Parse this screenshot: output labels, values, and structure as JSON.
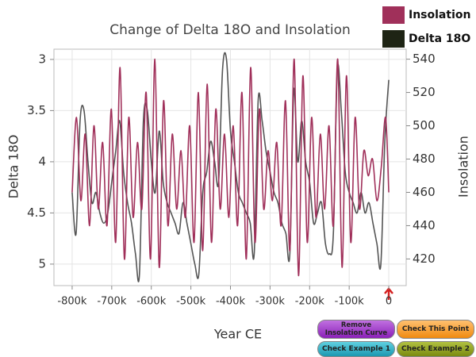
{
  "chart_data": {
    "type": "line",
    "title": "Change of Delta 18O and Insolation",
    "x_label": "Year CE",
    "y_label": "Delta 18O",
    "y2_label": "Insolation",
    "xlim": [
      -846000,
      44000
    ],
    "xticks": [
      {
        "value": -800000,
        "label": "-800k"
      },
      {
        "value": -700000,
        "label": "-700k"
      },
      {
        "value": -600000,
        "label": "-600k"
      },
      {
        "value": -500000,
        "label": "-500k"
      },
      {
        "value": -400000,
        "label": "-400k"
      },
      {
        "value": -300000,
        "label": "-300k"
      },
      {
        "value": -200000,
        "label": "-200k"
      },
      {
        "value": -100000,
        "label": "-100k"
      },
      {
        "value": 0,
        "label": "0"
      }
    ],
    "ylim": [
      2.9,
      5.21
    ],
    "y_inverted": true,
    "yticks": [
      3,
      3.5,
      4,
      4.5,
      5
    ],
    "y2lim": [
      404,
      546
    ],
    "y2ticks": [
      420,
      440,
      460,
      480,
      500,
      520,
      540
    ],
    "grid": true,
    "series": [
      {
        "name": "Insolation",
        "color": "#a0305a",
        "axis": "y2",
        "x": [
          -800000,
          -789000,
          -778000,
          -767000,
          -756000,
          -745000,
          -734000,
          -723000,
          -712000,
          -701000,
          -690000,
          -679000,
          -668000,
          -657000,
          -646000,
          -635000,
          -624000,
          -613000,
          -602000,
          -591000,
          -580000,
          -569000,
          -558000,
          -547000,
          -536000,
          -525000,
          -514000,
          -503000,
          -492000,
          -481000,
          -470000,
          -459000,
          -448000,
          -437000,
          -426000,
          -415000,
          -404000,
          -393000,
          -382000,
          -371000,
          -360000,
          -349000,
          -338000,
          -327000,
          -316000,
          -305000,
          -294000,
          -283000,
          -272000,
          -261000,
          -250000,
          -239000,
          -228000,
          -217000,
          -206000,
          -195000,
          -184000,
          -173000,
          -162000,
          -151000,
          -140000,
          -129000,
          -118000,
          -107000,
          -96000,
          -85000,
          -74000,
          -63000,
          -52000,
          -41000,
          -30000,
          -19000,
          -8000,
          0
        ],
        "values": [
          460,
          505,
          455,
          495,
          440,
          500,
          450,
          490,
          440,
          510,
          430,
          535,
          420,
          505,
          445,
          490,
          450,
          520,
          420,
          540,
          415,
          515,
          440,
          495,
          450,
          485,
          445,
          500,
          430,
          520,
          425,
          525,
          430,
          510,
          450,
          495,
          445,
          500,
          440,
          520,
          420,
          535,
          430,
          510,
          450,
          485,
          455,
          490,
          440,
          515,
          425,
          540,
          410,
          530,
          430,
          505,
          445,
          495,
          450,
          500,
          440,
          540,
          415,
          530,
          430,
          505,
          450,
          485,
          470,
          480,
          455,
          475,
          505,
          460
        ]
      },
      {
        "name": "Delta 18O",
        "color": "#555555",
        "x": [
          -800000,
          -790000,
          -780000,
          -770000,
          -760000,
          -750000,
          -740000,
          -730000,
          -720000,
          -710000,
          -700000,
          -690000,
          -680000,
          -670000,
          -660000,
          -650000,
          -640000,
          -630000,
          -620000,
          -610000,
          -600000,
          -590000,
          -580000,
          -570000,
          -560000,
          -550000,
          -540000,
          -530000,
          -520000,
          -510000,
          -500000,
          -490000,
          -480000,
          -470000,
          -460000,
          -450000,
          -440000,
          -430000,
          -420000,
          -410000,
          -400000,
          -390000,
          -380000,
          -370000,
          -360000,
          -350000,
          -340000,
          -330000,
          -320000,
          -310000,
          -300000,
          -290000,
          -280000,
          -270000,
          -260000,
          -250000,
          -240000,
          -230000,
          -220000,
          -210000,
          -200000,
          -190000,
          -180000,
          -170000,
          -160000,
          -150000,
          -140000,
          -130000,
          -120000,
          -110000,
          -100000,
          -90000,
          -80000,
          -70000,
          -60000,
          -50000,
          -40000,
          -30000,
          -20000,
          -10000,
          0
        ],
        "values": [
          4.3,
          4.7,
          3.6,
          3.5,
          4.0,
          4.4,
          4.3,
          4.5,
          4.6,
          4.5,
          4.2,
          3.9,
          3.6,
          4.1,
          4.4,
          4.6,
          4.9,
          5.1,
          3.6,
          3.5,
          4.0,
          4.3,
          3.7,
          4.2,
          4.4,
          4.5,
          4.6,
          4.7,
          4.4,
          4.6,
          4.8,
          5.0,
          5.1,
          4.3,
          4.1,
          3.8,
          4.0,
          4.2,
          3.1,
          3.0,
          3.7,
          4.0,
          4.3,
          4.4,
          4.5,
          4.6,
          4.9,
          3.4,
          3.6,
          3.9,
          4.1,
          4.3,
          4.4,
          4.6,
          4.7,
          4.9,
          3.3,
          4.0,
          3.6,
          4.0,
          4.2,
          4.6,
          4.5,
          4.4,
          4.8,
          4.9,
          4.7,
          3.1,
          3.5,
          4.1,
          4.3,
          4.4,
          4.5,
          4.3,
          4.5,
          4.4,
          4.6,
          4.8,
          5.0,
          3.8,
          3.2
        ]
      }
    ]
  },
  "buttons": [
    "Remove Insolation Curve",
    "Check This Point",
    "Check Example 1",
    "Check Example 2"
  ]
}
